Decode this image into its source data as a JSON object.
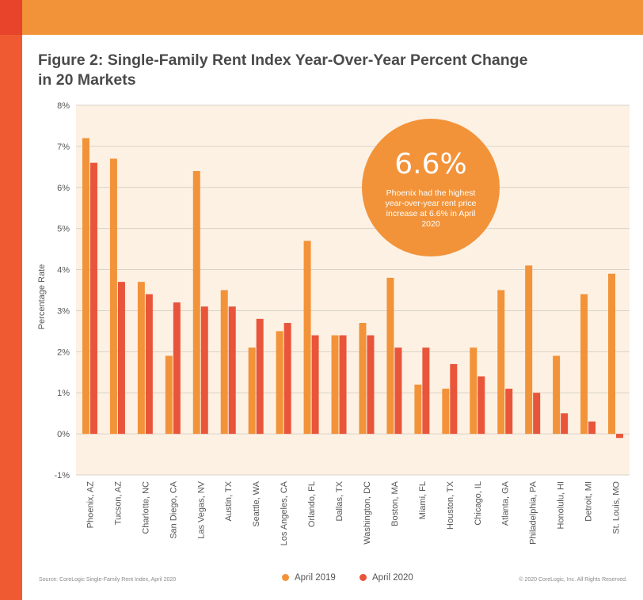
{
  "title": "Figure 2: Single-Family Rent Index Year-Over-Year Percent Change in 20 Markets",
  "callout": {
    "value": "6.6%",
    "text": "Phoenix had the highest year-over-year rent price increase at 6.6% in April 2020"
  },
  "footer": {
    "source": "Source: CoreLogic Single-Family Rent Index, April 2020",
    "copyright": "© 2020 CoreLogic, Inc. All Rights Reserved."
  },
  "colors": {
    "april_2019": "#f29339",
    "april_2020": "#e9553a",
    "plot_background": "#fdf1e4",
    "accent_bar": "#f29339",
    "side_bar": "#ef5a33"
  },
  "chart_data": {
    "type": "bar",
    "ylabel": "Percentage Rate",
    "xlabel": "",
    "ylim": [
      -1,
      8
    ],
    "yticks": [
      -1,
      0,
      1,
      2,
      3,
      4,
      5,
      6,
      7,
      8
    ],
    "ytick_labels": [
      "-1%",
      "0%",
      "1%",
      "2%",
      "3%",
      "4%",
      "5%",
      "6%",
      "7%",
      "8%"
    ],
    "grid": true,
    "legend_position": "bottom",
    "categories": [
      "Phoenix, AZ",
      "Tucson, AZ",
      "Charlotte, NC",
      "San Diego, CA",
      "Las Vegas, NV",
      "Austin, TX",
      "Seattle, WA",
      "Los Angeles, CA",
      "Orlando, FL",
      "Dallas, TX",
      "Washington, DC",
      "Boston, MA",
      "Miami, FL",
      "Houston, TX",
      "Chicago, IL",
      "Atlanta, GA",
      "Philadelphia, PA",
      "Honolulu, HI",
      "Detroit, MI",
      "St. Louis, MO"
    ],
    "series": [
      {
        "name": "April 2019",
        "values": [
          7.2,
          6.7,
          3.7,
          1.9,
          6.4,
          3.5,
          2.1,
          2.5,
          4.7,
          2.4,
          2.7,
          3.8,
          1.2,
          1.1,
          2.1,
          3.5,
          4.1,
          1.9,
          3.4,
          3.9
        ]
      },
      {
        "name": "April 2020",
        "values": [
          6.6,
          3.7,
          3.4,
          3.2,
          3.1,
          3.1,
          2.8,
          2.7,
          2.4,
          2.4,
          2.4,
          2.1,
          2.1,
          1.7,
          1.4,
          1.1,
          1.0,
          0.5,
          0.3,
          -0.1
        ]
      }
    ]
  }
}
